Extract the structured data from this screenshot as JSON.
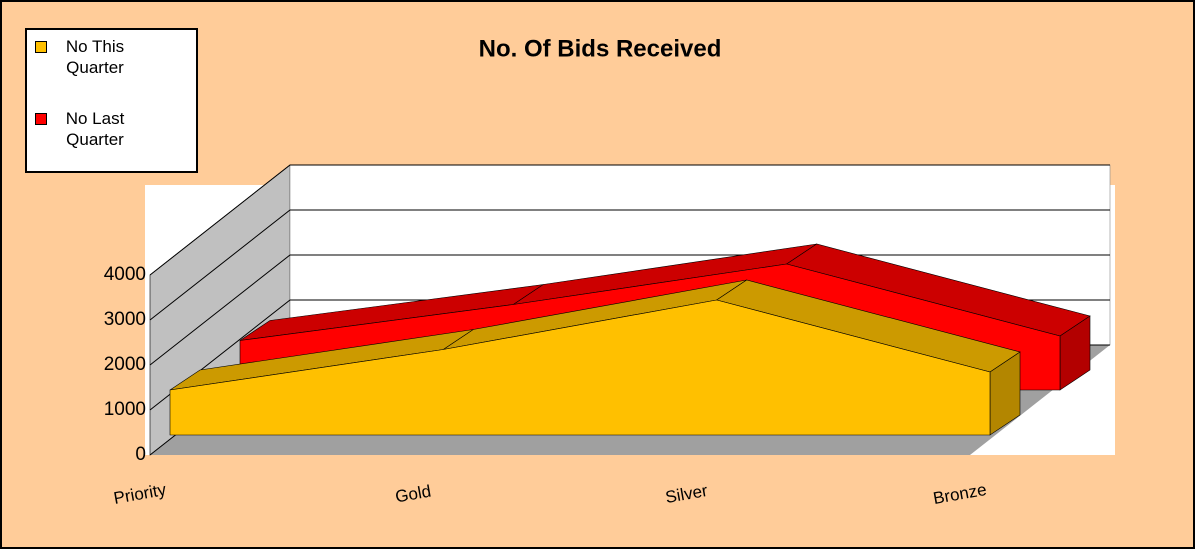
{
  "chart_data": {
    "type": "area3d",
    "title": "No. Of  Bids Received",
    "categories": [
      "Priority",
      "Gold",
      "Silver",
      "Bronze"
    ],
    "series": [
      {
        "name": "No This Quarter",
        "color": "#ffc000",
        "values": [
          1000,
          1900,
          3000,
          1400
        ]
      },
      {
        "name": "No Last Quarter",
        "color": "#ff0000",
        "values": [
          1100,
          1900,
          2800,
          1200
        ]
      }
    ],
    "ylim": [
      0,
      4000
    ],
    "yticks": [
      0,
      1000,
      2000,
      3000,
      4000
    ],
    "grid": true,
    "legend": "top-left"
  }
}
